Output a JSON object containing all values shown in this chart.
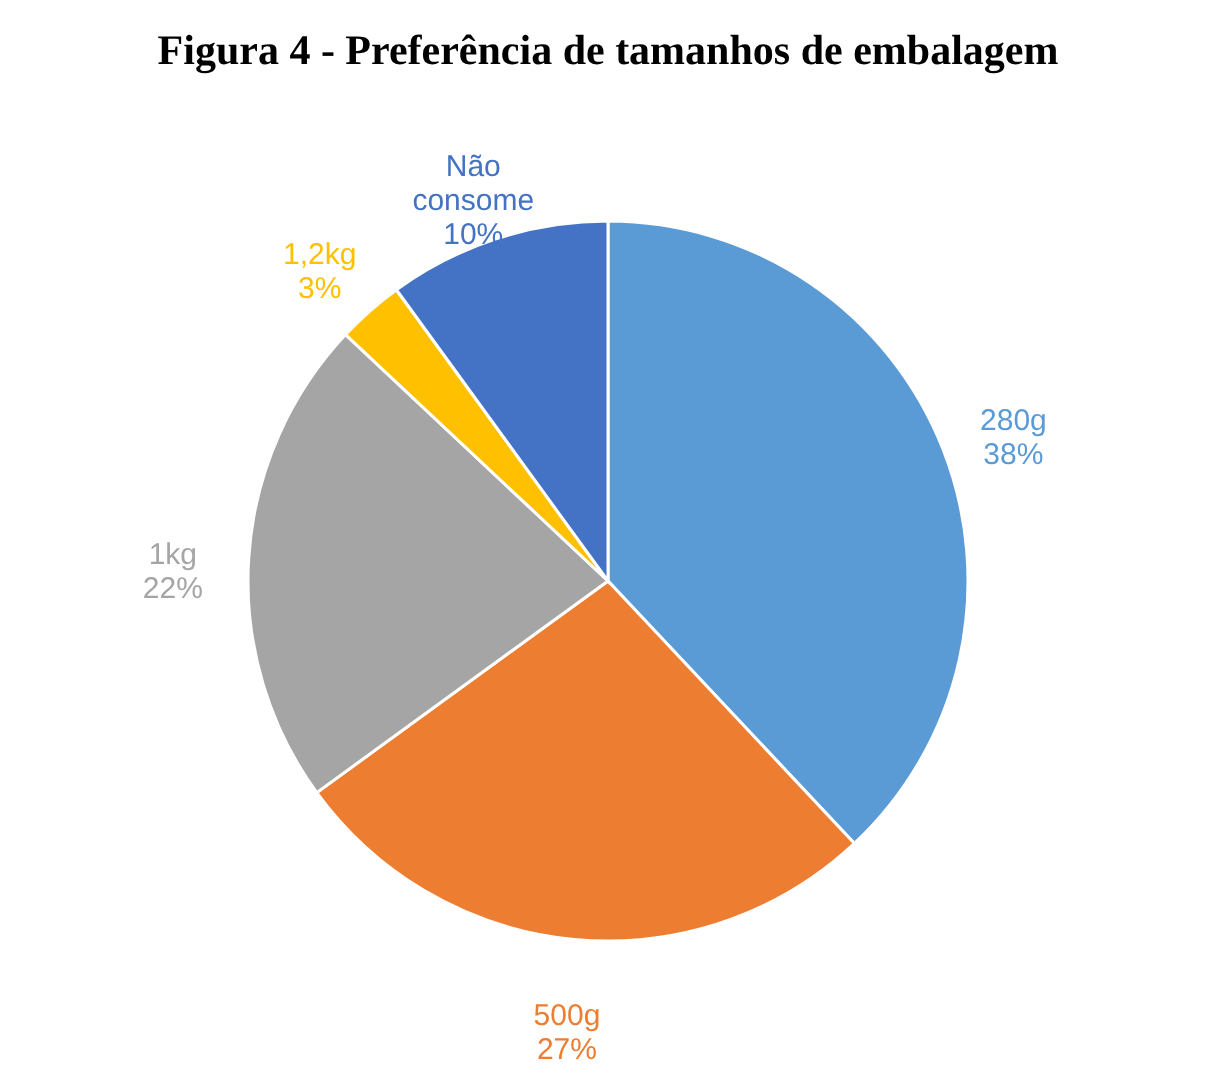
{
  "chart_data": {
    "type": "pie",
    "title": "Figura 4 - Preferência de tamanhos de embalagem",
    "categories": [
      "280g",
      "500g",
      "1kg",
      "1,2kg",
      "Não consome"
    ],
    "values": [
      38,
      27,
      22,
      3,
      10
    ],
    "value_labels": [
      "38%",
      "27%",
      "22%",
      "3%",
      "10%"
    ],
    "colors": [
      "#5b9bd5",
      "#ed7d31",
      "#a5a5a5",
      "#ffc000",
      "#4472c4"
    ],
    "legend": false
  }
}
